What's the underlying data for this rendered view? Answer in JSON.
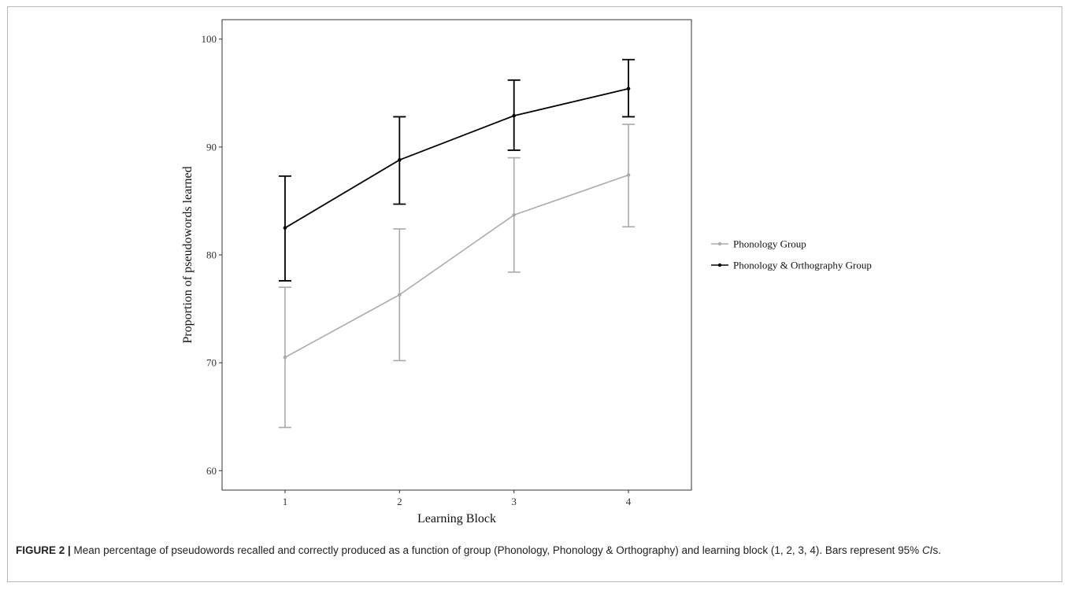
{
  "chart_data": {
    "type": "line",
    "xlabel": "Learning Block",
    "ylabel": "Proportion of pseudowords learned",
    "x": [
      1,
      2,
      3,
      4
    ],
    "x_tick_labels": [
      "1",
      "2",
      "3",
      "4"
    ],
    "y_ticks": [
      60,
      70,
      80,
      90,
      100
    ],
    "y_tick_labels": [
      "60",
      "70",
      "80",
      "90",
      "100"
    ],
    "ylim": [
      58.2,
      101.8
    ],
    "xlim": [
      0.45,
      4.55
    ],
    "grid": false,
    "legend_position": "right",
    "error_bars": "95% CIs",
    "series": [
      {
        "name": "Phonology Group",
        "color": "#aaaaaa",
        "values": [
          70.5,
          76.3,
          83.7,
          87.4
        ],
        "ci_low": [
          64.0,
          70.2,
          78.4,
          82.6
        ],
        "ci_high": [
          77.0,
          82.4,
          89.0,
          92.1
        ]
      },
      {
        "name": "Phonology & Orthography Group",
        "color": "#000000",
        "values": [
          82.5,
          88.8,
          92.9,
          95.4
        ],
        "ci_low": [
          77.6,
          84.7,
          89.7,
          92.8
        ],
        "ci_high": [
          87.3,
          92.8,
          96.2,
          98.1
        ]
      }
    ]
  },
  "caption": {
    "lead": "FIGURE 2 |",
    "text_before_ci": " Mean percentage of pseudowords recalled and correctly produced as a function of group (Phonology, Phonology & Orthography) and learning block (1, 2, 3, 4). Bars represent 95% ",
    "ci_italic": "CI",
    "text_after_ci": "s."
  }
}
